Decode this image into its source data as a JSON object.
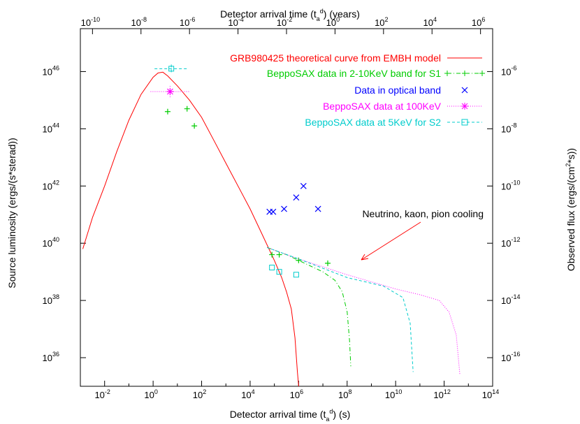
{
  "chart_data": {
    "type": "line",
    "x_axis": {
      "label": "Detector arrival time (t",
      "label_sub": "a",
      "label_sup": "d",
      "label_suffix": ") (s)",
      "scale": "log10",
      "range": [
        -3,
        14
      ],
      "tick_exponents": [
        -2,
        0,
        2,
        4,
        6,
        8,
        10,
        12,
        14
      ]
    },
    "x2_axis": {
      "label": "Detector arrival time (t",
      "label_sub": "a",
      "label_sup": "d",
      "label_suffix": ") (years)",
      "scale": "log10",
      "tick_exponents": [
        -10,
        -8,
        -6,
        -4,
        -2,
        0,
        2,
        4,
        6
      ],
      "seconds_per_year_log10": 7.5
    },
    "y_axis": {
      "label": "Source luminosity (ergs/(s*sterad))",
      "scale": "log10",
      "range": [
        35,
        47.5
      ],
      "tick_exponents": [
        36,
        38,
        40,
        42,
        44,
        46
      ]
    },
    "y2_axis": {
      "label": "Observed flux (ergs/(cm",
      "label_sup": "2",
      "label_suffix": "*s))",
      "scale": "log10",
      "tick_exponents": [
        -16,
        -14,
        -12,
        -10,
        -8,
        -6
      ],
      "offset_from_left": 52
    },
    "tick_base": "10",
    "series": [
      {
        "name": "GRB980425 theoretical curve from EMBH model",
        "color": "#ff0000",
        "style": "solid",
        "kind": "line",
        "points": [
          [
            -2.9,
            39.8
          ],
          [
            -2.5,
            40.9
          ],
          [
            -2,
            42.0
          ],
          [
            -1.5,
            43.2
          ],
          [
            -1,
            44.3
          ],
          [
            -0.5,
            45.2
          ],
          [
            0,
            45.8
          ],
          [
            0.2,
            45.95
          ],
          [
            0.4,
            45.98
          ],
          [
            0.6,
            45.85
          ],
          [
            1,
            45.5
          ],
          [
            1.5,
            45.0
          ],
          [
            2,
            44.4
          ],
          [
            2.5,
            43.6
          ],
          [
            3,
            42.8
          ],
          [
            3.5,
            42.0
          ],
          [
            4,
            41.2
          ],
          [
            4.5,
            40.3
          ],
          [
            5,
            39.4
          ],
          [
            5.3,
            38.8
          ],
          [
            5.5,
            38.3
          ],
          [
            5.7,
            37.7
          ],
          [
            5.85,
            36.7
          ],
          [
            5.95,
            35.5
          ],
          [
            6.0,
            35.0
          ]
        ]
      },
      {
        "name": "BeppoSAX data in 2-10KeV band for S1",
        "color": "#00cc00",
        "style": "dashdot",
        "kind": "line+plus",
        "points": [
          [
            4.7,
            39.85
          ],
          [
            5.5,
            39.6
          ],
          [
            6,
            39.4
          ],
          [
            6.5,
            39.2
          ],
          [
            7,
            39.0
          ],
          [
            7.5,
            38.7
          ],
          [
            7.8,
            38.3
          ],
          [
            8,
            37.6
          ],
          [
            8.1,
            36.6
          ],
          [
            8.15,
            35.7
          ]
        ],
        "markers": [
          [
            0.6,
            44.6
          ],
          [
            1.4,
            44.7
          ],
          [
            1.7,
            44.1
          ],
          [
            4.9,
            39.6
          ],
          [
            5.2,
            39.6
          ],
          [
            6,
            39.4
          ],
          [
            7.2,
            39.3
          ]
        ]
      },
      {
        "name": "Data in optical band",
        "color": "#0000ff",
        "style": "none",
        "kind": "cross",
        "markers": [
          [
            4.8,
            41.1
          ],
          [
            4.95,
            41.1
          ],
          [
            5.4,
            41.2
          ],
          [
            5.9,
            41.6
          ],
          [
            6.2,
            42.0
          ],
          [
            6.8,
            41.2
          ]
        ]
      },
      {
        "name": "BeppoSAX data at 100KeV",
        "color": "#ff00ff",
        "style": "dotted",
        "kind": "line+star",
        "points": [
          [
            4.7,
            39.85
          ],
          [
            6,
            39.45
          ],
          [
            8,
            38.9
          ],
          [
            10,
            38.4
          ],
          [
            11,
            38.2
          ],
          [
            11.8,
            38.0
          ],
          [
            12.2,
            37.6
          ],
          [
            12.5,
            36.8
          ],
          [
            12.65,
            35.4
          ]
        ],
        "markers": [
          [
            0.7,
            45.3
          ]
        ]
      },
      {
        "name": "BeppoSAX data at 5KeV for S2",
        "color": "#00cccc",
        "style": "dashed",
        "kind": "line+box",
        "points": [
          [
            4.7,
            39.85
          ],
          [
            6,
            39.45
          ],
          [
            8,
            38.8
          ],
          [
            9.5,
            38.5
          ],
          [
            10.3,
            38.1
          ],
          [
            10.6,
            37.2
          ],
          [
            10.72,
            35.5
          ]
        ],
        "markers": [
          [
            0.75,
            46.1
          ],
          [
            4.9,
            39.15
          ],
          [
            5.2,
            39.0
          ],
          [
            5.9,
            38.9
          ]
        ]
      }
    ],
    "annotation": {
      "text": "Neutrino, kaon, pion cooling"
    },
    "legend_location": "top-right"
  }
}
